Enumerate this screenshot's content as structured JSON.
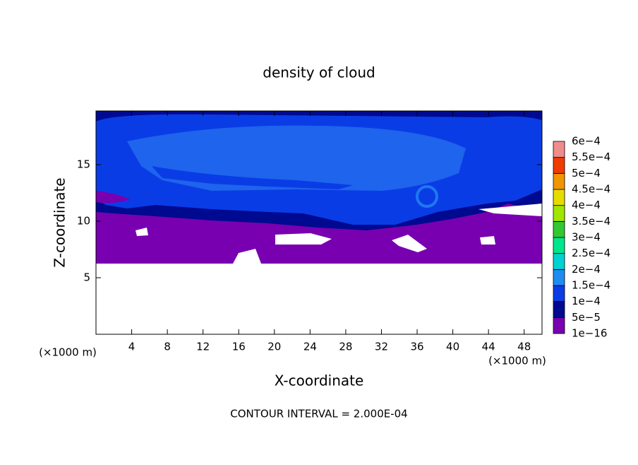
{
  "chart_data": {
    "type": "contour",
    "title": "density of cloud",
    "xlabel": "X-coordinate",
    "ylabel": "Z-coordinate",
    "xunit": "(×1000 m)",
    "yunit": "(×1000 m)",
    "footer": "CONTOUR INTERVAL = 2.000E-04",
    "xlim": [
      0,
      50
    ],
    "xticks": [
      4,
      8,
      12,
      16,
      20,
      24,
      28,
      32,
      36,
      40,
      44,
      48
    ],
    "ylim": [
      0,
      19.75
    ],
    "yticks": [
      5,
      10,
      15
    ],
    "colorbar": {
      "levels": [
        {
          "value": 1e-16,
          "label": "1e−16"
        },
        {
          "value": 5e-05,
          "label": "5e−5"
        },
        {
          "value": 0.0001,
          "label": "1e−4"
        },
        {
          "value": 0.00015,
          "label": "1.5e−4"
        },
        {
          "value": 0.0002,
          "label": "2e−4"
        },
        {
          "value": 0.00025,
          "label": "2.5e−4"
        },
        {
          "value": 0.0003,
          "label": "3e−4"
        },
        {
          "value": 0.00035,
          "label": "3.5e−4"
        },
        {
          "value": 0.0004,
          "label": "4e−4"
        },
        {
          "value": 0.00045,
          "label": "4.5e−4"
        },
        {
          "value": 0.0005,
          "label": "5e−4"
        },
        {
          "value": 0.00055,
          "label": "5.5e−4"
        },
        {
          "value": 0.0006,
          "label": "6e−4"
        }
      ],
      "colors": [
        "#7800b0",
        "#000a90",
        "#0a3ce6",
        "#1e8cf0",
        "#00d2d2",
        "#00e68c",
        "#32c832",
        "#a0e600",
        "#e6dc00",
        "#f09600",
        "#f03c00",
        "#f08c8c"
      ]
    }
  }
}
